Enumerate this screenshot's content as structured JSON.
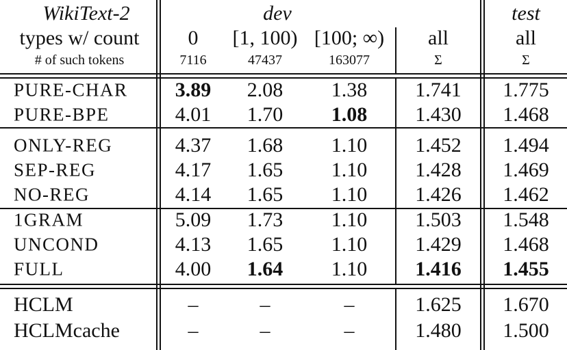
{
  "header": {
    "dataset": "WikiText-2",
    "dev_label": "dev",
    "test_label": "test",
    "row2_label": "types w/ count",
    "row2": [
      "0",
      "[1, 100)",
      "[100; ∞)",
      "all",
      "all"
    ],
    "row3_label": "# of such tokens",
    "row3": [
      "7116",
      "47437",
      "163077",
      "Σ",
      "Σ"
    ]
  },
  "rows": [
    {
      "label": "PURE-CHAR",
      "smallcaps": true,
      "values": [
        "3.89",
        "2.08",
        "1.38",
        "1.741",
        "1.775"
      ],
      "bold": [
        true,
        false,
        false,
        false,
        false
      ]
    },
    {
      "label": "PURE-BPE",
      "smallcaps": true,
      "values": [
        "4.01",
        "1.70",
        "1.08",
        "1.430",
        "1.468"
      ],
      "bold": [
        false,
        false,
        true,
        false,
        false
      ]
    },
    {
      "label": "ONLY-REG",
      "smallcaps": true,
      "values": [
        "4.37",
        "1.68",
        "1.10",
        "1.452",
        "1.494"
      ],
      "bold": [
        false,
        false,
        false,
        false,
        false
      ]
    },
    {
      "label": "SEP-REG",
      "smallcaps": true,
      "values": [
        "4.17",
        "1.65",
        "1.10",
        "1.428",
        "1.469"
      ],
      "bold": [
        false,
        false,
        false,
        false,
        false
      ]
    },
    {
      "label": "NO-REG",
      "smallcaps": true,
      "values": [
        "4.14",
        "1.65",
        "1.10",
        "1.426",
        "1.462"
      ],
      "bold": [
        false,
        false,
        false,
        false,
        false
      ]
    },
    {
      "label": "1GRAM",
      "smallcaps": true,
      "values": [
        "5.09",
        "1.73",
        "1.10",
        "1.503",
        "1.548"
      ],
      "bold": [
        false,
        false,
        false,
        false,
        false
      ]
    },
    {
      "label": "UNCOND",
      "smallcaps": true,
      "values": [
        "4.13",
        "1.65",
        "1.10",
        "1.429",
        "1.468"
      ],
      "bold": [
        false,
        false,
        false,
        false,
        false
      ]
    },
    {
      "label": "FULL",
      "smallcaps": true,
      "values": [
        "4.00",
        "1.64",
        "1.10",
        "1.416",
        "1.455"
      ],
      "bold": [
        false,
        true,
        false,
        true,
        true
      ]
    },
    {
      "label": "HCLM",
      "smallcaps": false,
      "values": [
        "–",
        "–",
        "–",
        "1.625",
        "1.670"
      ],
      "bold": [
        false,
        false,
        false,
        false,
        false
      ]
    },
    {
      "label": "HCLMcache",
      "smallcaps": false,
      "values": [
        "–",
        "–",
        "–",
        "1.480",
        "1.500"
      ],
      "bold": [
        false,
        false,
        false,
        false,
        false
      ]
    }
  ]
}
